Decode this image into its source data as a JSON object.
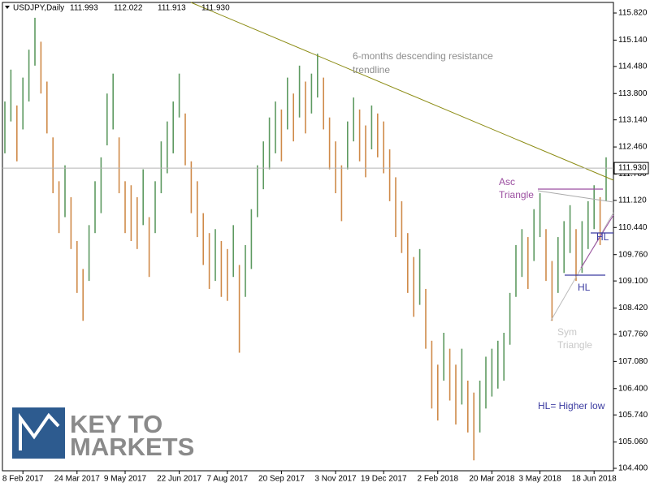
{
  "header": {
    "symbol": "USDJPY,Daily",
    "ohlc": [
      "111.993",
      "112.022",
      "111.913",
      "111.930"
    ]
  },
  "chart_data": {
    "type": "ohlc",
    "categories": [
      null,
      null,
      null,
      "8 Feb 2017",
      null,
      null,
      null,
      null,
      null,
      null,
      null,
      null,
      "24 Mar 2017",
      null,
      null,
      null,
      null,
      null,
      null,
      null,
      "9 May 2017",
      null,
      null,
      null,
      null,
      null,
      null,
      null,
      null,
      "22 Jun 2017",
      null,
      null,
      null,
      null,
      null,
      null,
      null,
      "7 Aug 2017",
      null,
      null,
      null,
      null,
      null,
      null,
      null,
      null,
      "20 Sep 2017",
      null,
      null,
      null,
      null,
      null,
      null,
      null,
      null,
      "3 Nov 2017",
      null,
      null,
      null,
      null,
      null,
      null,
      null,
      "19 Dec 2017",
      null,
      null,
      null,
      null,
      null,
      null,
      null,
      null,
      "2 Feb 2018",
      null,
      null,
      null,
      null,
      null,
      null,
      null,
      null,
      "20 Mar 2018",
      null,
      null,
      null,
      null,
      null,
      null,
      null,
      "3 May 2018",
      null,
      null,
      null,
      null,
      null,
      null,
      null,
      null,
      "18 Jun 2018",
      null,
      null
    ],
    "high": [
      113.6,
      114.4,
      113.5,
      114.2,
      114.9,
      115.7,
      115.1,
      114.1,
      112.7,
      111.6,
      112.0,
      111.2,
      110.1,
      109.4,
      110.5,
      111.6,
      112.2,
      113.8,
      114.3,
      112.7,
      111.6,
      111.5,
      111.2,
      111.9,
      110.7,
      111.6,
      112.6,
      113.1,
      113.6,
      114.3,
      113.3,
      112.1,
      111.6,
      110.8,
      110.3,
      110.4,
      110.1,
      109.9,
      110.5,
      109.5,
      110.0,
      110.9,
      112.0,
      112.6,
      113.2,
      113.6,
      113.4,
      114.2,
      113.8,
      114.5,
      114.1,
      114.3,
      114.8,
      114.2,
      113.2,
      112.6,
      112.0,
      113.1,
      113.7,
      113.4,
      113.0,
      113.5,
      113.3,
      113.1,
      112.4,
      111.7,
      111.1,
      110.3,
      109.7,
      109.9,
      108.9,
      107.6,
      107.0,
      107.8,
      107.4,
      107.0,
      107.4,
      106.6,
      106.3,
      106.6,
      107.2,
      107.4,
      107.6,
      107.8,
      108.8,
      110.0,
      110.4,
      110.2,
      110.9,
      111.3,
      110.4,
      109.6,
      110.2,
      110.6,
      111.0,
      110.4,
      110.6,
      111.1,
      111.5,
      111.2,
      112.2
    ],
    "low": [
      112.3,
      113.1,
      112.1,
      112.9,
      113.6,
      114.5,
      113.8,
      112.8,
      111.3,
      110.3,
      110.7,
      109.9,
      108.8,
      108.1,
      109.1,
      110.3,
      110.8,
      112.5,
      112.9,
      111.3,
      110.3,
      110.1,
      109.9,
      110.5,
      109.2,
      110.3,
      111.3,
      111.8,
      112.3,
      113.2,
      112.0,
      110.8,
      110.2,
      109.5,
      108.9,
      109.1,
      108.7,
      108.6,
      109.2,
      107.3,
      108.7,
      109.4,
      110.7,
      111.4,
      111.9,
      112.3,
      112.1,
      112.9,
      112.6,
      113.2,
      112.8,
      113.3,
      113.7,
      112.9,
      111.9,
      111.3,
      110.6,
      111.9,
      112.6,
      112.1,
      111.7,
      112.4,
      112.2,
      111.8,
      111.1,
      110.2,
      109.8,
      108.8,
      108.2,
      108.5,
      107.4,
      105.9,
      105.6,
      106.6,
      106.1,
      105.5,
      106.0,
      105.3,
      104.6,
      105.3,
      105.9,
      106.2,
      106.4,
      106.6,
      107.5,
      108.7,
      109.2,
      108.9,
      109.6,
      110.2,
      109.1,
      108.1,
      108.8,
      109.3,
      109.8,
      109.1,
      109.3,
      109.9,
      110.4,
      110.0,
      111.1
    ],
    "colors": {
      "up": "#5e9a61",
      "down": "#cf8a49"
    },
    "ylim": [
      116.085,
      104.339
    ],
    "yticks": [
      {
        "value": 115.82,
        "label": "115.820"
      },
      {
        "value": 115.14,
        "label": "115.140"
      },
      {
        "value": 114.48,
        "label": "114.480"
      },
      {
        "value": 113.8,
        "label": "113.800"
      },
      {
        "value": 113.14,
        "label": "113.140"
      },
      {
        "value": 112.46,
        "label": "112.460"
      },
      {
        "value": 111.78,
        "label": "111.780"
      },
      {
        "value": 111.12,
        "label": "111.120"
      },
      {
        "value": 110.44,
        "label": "110.440"
      },
      {
        "value": 109.76,
        "label": "109.760"
      },
      {
        "value": 109.1,
        "label": "109.100"
      },
      {
        "value": 108.42,
        "label": "108.420"
      },
      {
        "value": 107.76,
        "label": "107.760"
      },
      {
        "value": 107.08,
        "label": "107.080"
      },
      {
        "value": 106.4,
        "label": "106.400"
      },
      {
        "value": 105.74,
        "label": "105.740"
      },
      {
        "value": 105.06,
        "label": "105.060"
      },
      {
        "value": 104.4,
        "label": "104.400"
      }
    ],
    "last_price": {
      "value": 111.93,
      "label": "111.930"
    },
    "annotations": {
      "trendline": [
        "6-months descending resistance",
        "trendline"
      ],
      "asc": [
        "Asc",
        "Triangle"
      ],
      "sym": [
        "Sym",
        "Triangle"
      ],
      "hl_upper": "HL",
      "hl_lower": "HL",
      "legend": "HL= Higher low"
    }
  },
  "branding": {
    "line1": "KEY TO",
    "line2": "MARKETS"
  }
}
